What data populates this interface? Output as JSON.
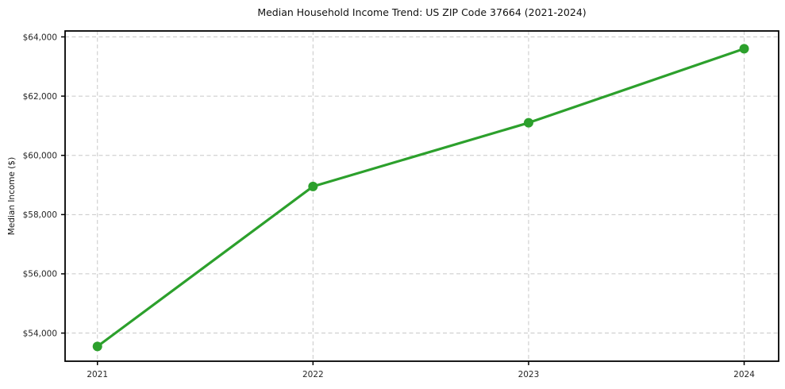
{
  "figure": {
    "background": "#ffffff"
  },
  "chart_data": {
    "type": "line",
    "title": "Median Household Income Trend: US ZIP Code 37664 (2021-2024)",
    "xlabel": "",
    "ylabel": "Median Income ($)",
    "categories": [
      "2021",
      "2022",
      "2023",
      "2024"
    ],
    "x": [
      2021,
      2022,
      2023,
      2024
    ],
    "series": [
      {
        "name": "Median Household Income",
        "values": [
          53550,
          58950,
          61100,
          63600
        ],
        "color": "#2ca02c",
        "marker": "circle",
        "marker_radius": 6,
        "line_width": 3.2
      }
    ],
    "yticks": [
      54000,
      56000,
      58000,
      60000,
      62000,
      64000
    ],
    "ytick_labels": [
      "$54,000",
      "$56,000",
      "$58,000",
      "$60,000",
      "$62,000",
      "$64,000"
    ],
    "ylim": [
      53050,
      64200
    ],
    "xlim": [
      2020.85,
      2024.16
    ],
    "grid": true,
    "grid_style": "dashed",
    "grid_color": "#c8c8c8",
    "axis_color": "#000000",
    "tick_text_color": "#262626",
    "legend": "none"
  }
}
